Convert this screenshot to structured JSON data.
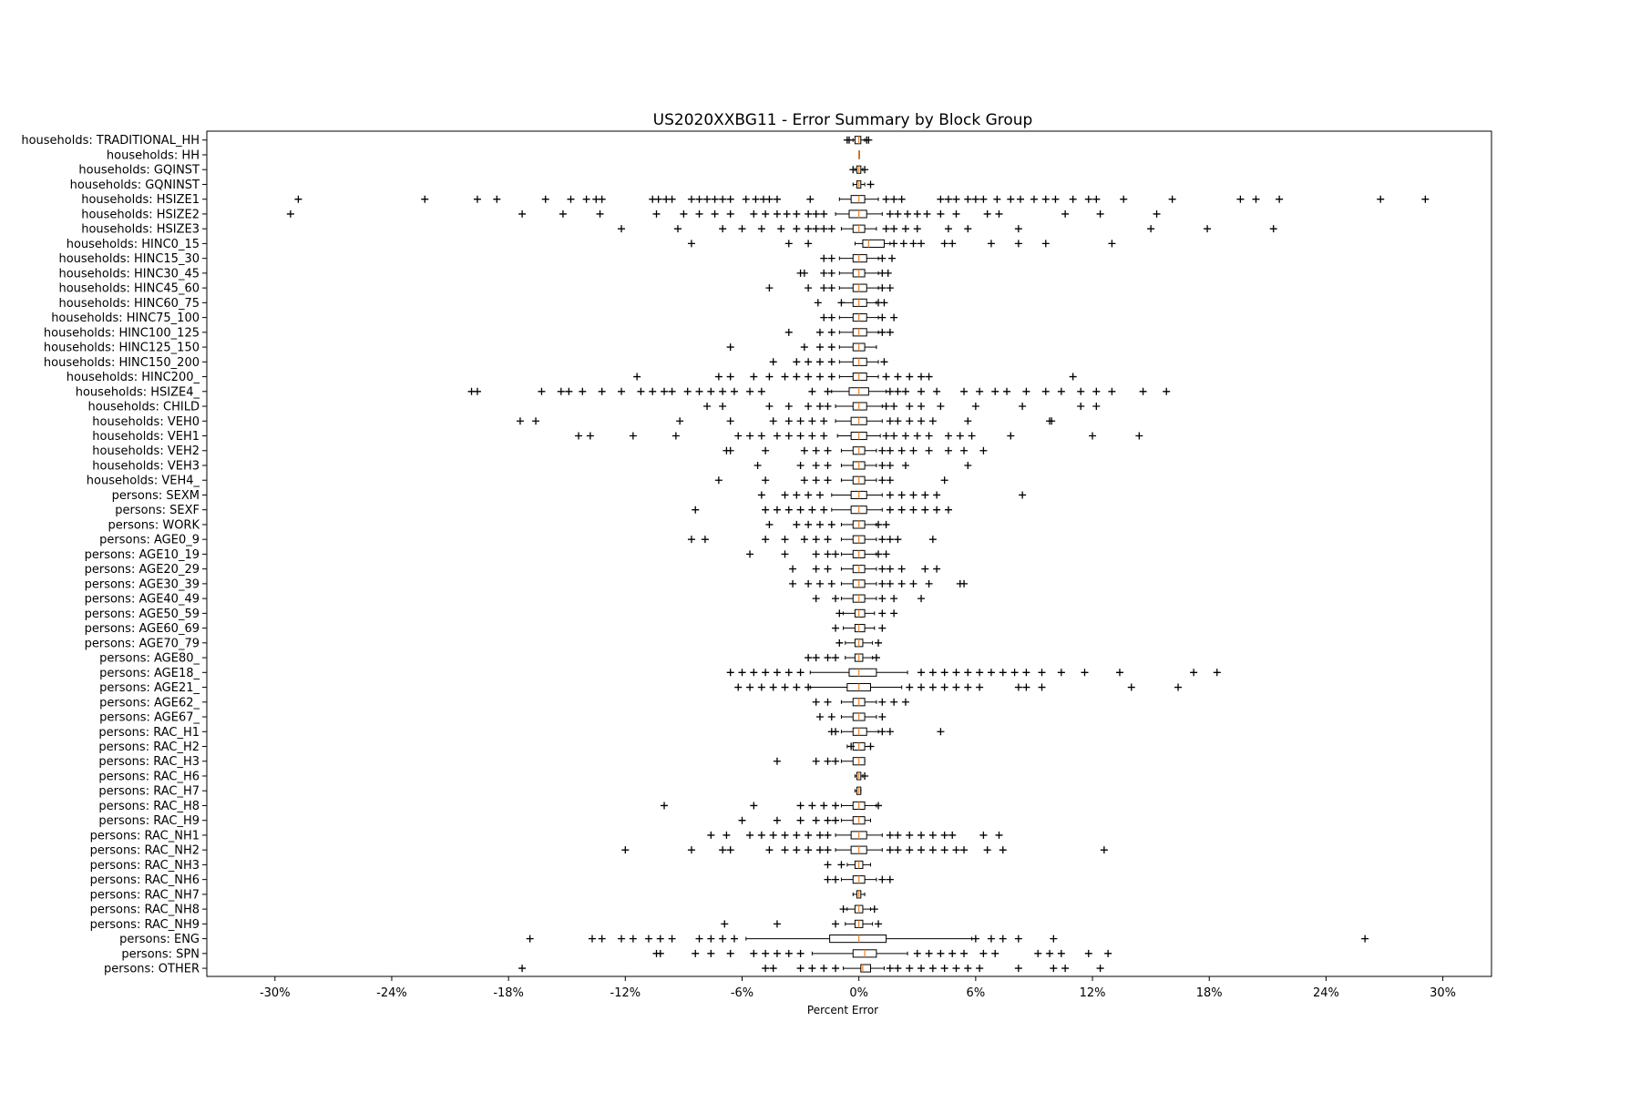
{
  "chart_data": {
    "type": "box",
    "orientation": "horizontal",
    "title": "US2020XXBG11 - Error Summary by Block Group",
    "xlabel": "Percent Error",
    "ylabel": "",
    "xlim": [
      -33.5,
      32.5
    ],
    "xticks": [
      -30,
      -24,
      -18,
      -12,
      -6,
      0,
      6,
      12,
      18,
      24,
      30
    ],
    "xtick_labels": [
      "-30%",
      "-24%",
      "-18%",
      "-12%",
      "-6%",
      "0%",
      "6%",
      "12%",
      "18%",
      "24%",
      "30%"
    ],
    "colors": {
      "median": "#ff7f0e",
      "box": "#000000",
      "frame": "#000000"
    },
    "legend": "none",
    "grid": false,
    "categories": [
      "households: TRADITIONAL_HH",
      "households: HH",
      "households: GQINST",
      "households: GQNINST",
      "households: HSIZE1",
      "households: HSIZE2",
      "households: HSIZE3",
      "households: HINC0_15",
      "households: HINC15_30",
      "households: HINC30_45",
      "households: HINC45_60",
      "households: HINC60_75",
      "households: HINC75_100",
      "households: HINC100_125",
      "households: HINC125_150",
      "households: HINC150_200",
      "households: HINC200_",
      "households: HSIZE4_",
      "households: CHILD",
      "households: VEH0",
      "households: VEH1",
      "households: VEH2",
      "households: VEH3",
      "households: VEH4_",
      "persons: SEXM",
      "persons: SEXF",
      "persons: WORK",
      "persons: AGE0_9",
      "persons: AGE10_19",
      "persons: AGE20_29",
      "persons: AGE30_39",
      "persons: AGE40_49",
      "persons: AGE50_59",
      "persons: AGE60_69",
      "persons: AGE70_79",
      "persons: AGE80_",
      "persons: AGE18_",
      "persons: AGE21_",
      "persons: AGE62_",
      "persons: AGE67_",
      "persons: RAC_H1",
      "persons: RAC_H2",
      "persons: RAC_H3",
      "persons: RAC_H6",
      "persons: RAC_H7",
      "persons: RAC_H8",
      "persons: RAC_H9",
      "persons: RAC_NH1",
      "persons: RAC_NH2",
      "persons: RAC_NH3",
      "persons: RAC_NH6",
      "persons: RAC_NH7",
      "persons: RAC_NH8",
      "persons: RAC_NH9",
      "persons: ENG",
      "persons: SPN",
      "persons: OTHER"
    ],
    "series": [
      {
        "q1": -0.2,
        "median": 0,
        "q3": 0.1,
        "lo": -0.3,
        "hi": 0.3,
        "outliers": [
          -0.6,
          -0.5,
          0.4,
          0.5
        ]
      },
      {
        "q1": 0,
        "median": 0,
        "q3": 0,
        "lo": 0,
        "hi": 0,
        "outliers": []
      },
      {
        "q1": -0.1,
        "median": 0,
        "q3": 0.1,
        "lo": -0.2,
        "hi": 0.2,
        "outliers": [
          -0.3,
          0.3
        ]
      },
      {
        "q1": -0.1,
        "median": 0,
        "q3": 0.1,
        "lo": -0.3,
        "hi": 0.3,
        "outliers": [
          0.6
        ]
      },
      {
        "q1": -0.4,
        "median": 0,
        "q3": 0.3,
        "lo": -1.0,
        "hi": 1.0,
        "outliers": [
          -28.8,
          -22.3,
          -19.6,
          -18.6,
          -16.1,
          -14.8,
          -14.0,
          -13.5,
          -13.2,
          -10.6,
          -10.3,
          -9.9,
          -9.6,
          -8.6,
          -8.2,
          -7.8,
          -7.4,
          -7.0,
          -6.6,
          -5.8,
          -5.3,
          -4.9,
          -4.6,
          -4.2,
          -2.5,
          1.4,
          1.8,
          2.2,
          4.2,
          4.6,
          5.0,
          5.6,
          6.0,
          6.4,
          7.1,
          7.8,
          8.3,
          9.0,
          9.6,
          10.1,
          11.0,
          11.8,
          12.2,
          13.6,
          16.1,
          19.6,
          20.4,
          21.6,
          26.8,
          29.1
        ]
      },
      {
        "q1": -0.5,
        "median": 0,
        "q3": 0.4,
        "lo": -1.2,
        "hi": 1.2,
        "outliers": [
          -29.2,
          -17.3,
          -15.2,
          -13.3,
          -10.4,
          -9.0,
          -8.2,
          -7.4,
          -6.6,
          -5.4,
          -4.8,
          -4.2,
          -3.7,
          -3.2,
          -2.6,
          -2.2,
          -1.8,
          1.6,
          2.0,
          2.5,
          3.0,
          3.5,
          4.2,
          5.0,
          6.6,
          7.2,
          10.6,
          12.4,
          15.3
        ]
      },
      {
        "q1": -0.3,
        "median": 0,
        "q3": 0.3,
        "lo": -0.9,
        "hi": 0.9,
        "outliers": [
          -12.2,
          -9.3,
          -7.0,
          -6.0,
          -5.0,
          -4.0,
          -3.2,
          -2.6,
          -2.2,
          -1.8,
          -1.4,
          1.4,
          1.8,
          2.4,
          3.0,
          4.6,
          5.6,
          8.2,
          15.0,
          17.9,
          21.3
        ]
      },
      {
        "q1": 0.2,
        "median": 0.5,
        "q3": 1.3,
        "lo": -0.2,
        "hi": 1.6,
        "outliers": [
          -8.6,
          -3.6,
          -2.6,
          1.8,
          2.3,
          2.8,
          3.2,
          4.4,
          4.8,
          6.8,
          8.2,
          9.6,
          13.0
        ]
      },
      {
        "q1": -0.3,
        "median": 0,
        "q3": 0.4,
        "lo": -1.0,
        "hi": 1.0,
        "outliers": [
          -1.8,
          -1.4,
          1.2,
          1.7
        ]
      },
      {
        "q1": -0.3,
        "median": 0,
        "q3": 0.3,
        "lo": -1.0,
        "hi": 1.0,
        "outliers": [
          -3.0,
          -2.8,
          -1.8,
          -1.4,
          1.2,
          1.5
        ]
      },
      {
        "q1": -0.3,
        "median": 0,
        "q3": 0.4,
        "lo": -1.0,
        "hi": 1.0,
        "outliers": [
          -4.6,
          -2.6,
          -1.8,
          -1.4,
          1.2,
          1.6
        ]
      },
      {
        "q1": -0.3,
        "median": 0,
        "q3": 0.4,
        "lo": -0.9,
        "hi": 0.9,
        "outliers": [
          -2.1,
          -0.9,
          1.0,
          1.3
        ]
      },
      {
        "q1": -0.3,
        "median": 0,
        "q3": 0.4,
        "lo": -1.0,
        "hi": 1.0,
        "outliers": [
          -1.8,
          -1.4,
          1.2,
          1.8
        ]
      },
      {
        "q1": -0.3,
        "median": 0,
        "q3": 0.4,
        "lo": -1.0,
        "hi": 1.0,
        "outliers": [
          -3.6,
          -2.0,
          -1.4,
          1.2,
          1.6
        ]
      },
      {
        "q1": -0.3,
        "median": 0,
        "q3": 0.3,
        "lo": -1.0,
        "hi": 0.9,
        "outliers": [
          -6.6,
          -2.8,
          -2.0,
          -1.4
        ]
      },
      {
        "q1": -0.3,
        "median": 0,
        "q3": 0.4,
        "lo": -1.0,
        "hi": 1.0,
        "outliers": [
          -4.4,
          -3.2,
          -2.6,
          -2.0,
          -1.4,
          1.3
        ]
      },
      {
        "q1": -0.3,
        "median": 0,
        "q3": 0.4,
        "lo": -1.0,
        "hi": 1.0,
        "outliers": [
          -11.4,
          -7.2,
          -6.6,
          -5.4,
          -4.6,
          -3.8,
          -3.2,
          -2.6,
          -2.0,
          -1.4,
          1.4,
          2.0,
          2.6,
          3.2,
          3.6,
          11.0
        ]
      },
      {
        "q1": -0.5,
        "median": 0,
        "q3": 0.5,
        "lo": -1.4,
        "hi": 1.4,
        "outliers": [
          -19.9,
          -19.6,
          -16.3,
          -15.3,
          -14.9,
          -14.2,
          -13.2,
          -12.2,
          -11.2,
          -10.6,
          -10.0,
          -9.6,
          -8.8,
          -8.2,
          -7.6,
          -7.0,
          -6.4,
          -5.6,
          -5.0,
          -2.4,
          -1.6,
          1.6,
          2.0,
          2.4,
          3.2,
          4.0,
          5.4,
          6.2,
          7.0,
          7.6,
          8.6,
          9.6,
          10.4,
          11.4,
          12.2,
          13.0,
          14.6,
          15.8
        ]
      },
      {
        "q1": -0.3,
        "median": 0,
        "q3": 0.4,
        "lo": -1.2,
        "hi": 1.2,
        "outliers": [
          -7.8,
          -7.0,
          -4.6,
          -3.6,
          -2.6,
          -2.0,
          -1.6,
          1.4,
          1.8,
          2.6,
          3.2,
          4.2,
          6.0,
          8.4,
          11.4,
          12.2
        ]
      },
      {
        "q1": -0.4,
        "median": 0,
        "q3": 0.4,
        "lo": -1.2,
        "hi": 1.2,
        "outliers": [
          -17.4,
          -16.6,
          -9.2,
          -6.6,
          -4.4,
          -3.6,
          -3.0,
          -2.4,
          -1.8,
          1.6,
          2.0,
          2.6,
          3.2,
          3.8,
          5.6,
          9.8,
          9.9
        ]
      },
      {
        "q1": -0.4,
        "median": 0,
        "q3": 0.4,
        "lo": -1.1,
        "hi": 1.1,
        "outliers": [
          -14.4,
          -13.8,
          -11.6,
          -9.4,
          -6.2,
          -5.6,
          -5.0,
          -4.2,
          -3.6,
          -3.0,
          -2.4,
          -1.8,
          1.4,
          1.8,
          2.4,
          3.0,
          3.6,
          4.6,
          5.2,
          5.8,
          7.8,
          12.0,
          14.4
        ]
      },
      {
        "q1": -0.3,
        "median": 0,
        "q3": 0.3,
        "lo": -0.9,
        "hi": 0.9,
        "outliers": [
          -6.8,
          -6.6,
          -4.8,
          -2.8,
          -2.2,
          -1.6,
          1.2,
          1.6,
          2.2,
          2.8,
          3.6,
          4.6,
          5.4,
          6.4
        ]
      },
      {
        "q1": -0.3,
        "median": 0,
        "q3": 0.3,
        "lo": -0.9,
        "hi": 0.9,
        "outliers": [
          -5.2,
          -3.0,
          -2.2,
          -1.6,
          1.2,
          1.6,
          2.4,
          5.6
        ]
      },
      {
        "q1": -0.3,
        "median": 0,
        "q3": 0.3,
        "lo": -0.9,
        "hi": 0.9,
        "outliers": [
          -7.2,
          -4.8,
          -2.8,
          -2.2,
          -1.6,
          1.2,
          1.6,
          4.4
        ]
      },
      {
        "q1": -0.4,
        "median": 0,
        "q3": 0.4,
        "lo": -1.4,
        "hi": 1.2,
        "outliers": [
          -5.0,
          -3.8,
          -3.2,
          -2.6,
          -2.0,
          1.6,
          2.2,
          2.8,
          3.4,
          4.0,
          8.4
        ]
      },
      {
        "q1": -0.4,
        "median": 0,
        "q3": 0.4,
        "lo": -1.4,
        "hi": 1.2,
        "outliers": [
          -8.4,
          -4.8,
          -4.2,
          -3.6,
          -3.0,
          -2.4,
          -1.8,
          1.6,
          2.2,
          2.8,
          3.4,
          4.0,
          4.6
        ]
      },
      {
        "q1": -0.3,
        "median": 0,
        "q3": 0.3,
        "lo": -0.9,
        "hi": 0.9,
        "outliers": [
          -4.6,
          -3.2,
          -2.6,
          -2.0,
          -1.4,
          1.0,
          1.4
        ]
      },
      {
        "q1": -0.3,
        "median": 0,
        "q3": 0.3,
        "lo": -0.9,
        "hi": 0.9,
        "outliers": [
          -8.6,
          -7.9,
          -4.8,
          -3.8,
          -2.8,
          -2.2,
          -1.6,
          1.2,
          1.6,
          2.0,
          3.8
        ]
      },
      {
        "q1": -0.3,
        "median": 0,
        "q3": 0.3,
        "lo": -0.9,
        "hi": 0.9,
        "outliers": [
          -5.6,
          -3.8,
          -2.2,
          -1.6,
          -1.2,
          1.0,
          1.4
        ]
      },
      {
        "q1": -0.3,
        "median": 0,
        "q3": 0.3,
        "lo": -0.9,
        "hi": 0.9,
        "outliers": [
          -3.4,
          -2.2,
          -1.6,
          1.2,
          1.6,
          2.2,
          3.4,
          4.0
        ]
      },
      {
        "q1": -0.3,
        "median": 0,
        "q3": 0.3,
        "lo": -0.9,
        "hi": 0.9,
        "outliers": [
          -3.4,
          -2.6,
          -2.0,
          -1.4,
          1.2,
          1.6,
          2.2,
          2.8,
          3.6,
          5.2,
          5.4
        ]
      },
      {
        "q1": -0.3,
        "median": 0,
        "q3": 0.3,
        "lo": -0.9,
        "hi": 0.9,
        "outliers": [
          -2.2,
          -1.2,
          1.2,
          1.8,
          3.2
        ]
      },
      {
        "q1": -0.2,
        "median": 0,
        "q3": 0.3,
        "lo": -0.8,
        "hi": 0.8,
        "outliers": [
          -1.0,
          1.2,
          1.8
        ]
      },
      {
        "q1": -0.2,
        "median": 0,
        "q3": 0.3,
        "lo": -0.8,
        "hi": 0.8,
        "outliers": [
          -1.2,
          1.2
        ]
      },
      {
        "q1": -0.2,
        "median": 0,
        "q3": 0.2,
        "lo": -0.7,
        "hi": 0.7,
        "outliers": [
          -1.0,
          1.0
        ]
      },
      {
        "q1": -0.2,
        "median": 0,
        "q3": 0.2,
        "lo": -0.7,
        "hi": 0.7,
        "outliers": [
          -2.6,
          -2.2,
          -1.6,
          -1.2,
          0.9
        ]
      },
      {
        "q1": -0.5,
        "median": 0,
        "q3": 0.9,
        "lo": -2.5,
        "hi": 2.5,
        "outliers": [
          -6.6,
          -6.0,
          -5.4,
          -4.8,
          -4.2,
          -3.6,
          -3.0,
          3.2,
          3.8,
          4.4,
          5.0,
          5.6,
          6.2,
          6.8,
          7.4,
          8.0,
          8.6,
          9.4,
          10.4,
          11.6,
          13.4,
          17.2,
          18.4
        ]
      },
      {
        "q1": -0.6,
        "median": 0,
        "q3": 0.6,
        "lo": -2.5,
        "hi": 2.2,
        "outliers": [
          -6.2,
          -5.6,
          -5.0,
          -4.4,
          -3.8,
          -3.2,
          -2.6,
          2.6,
          3.2,
          3.8,
          4.4,
          5.0,
          5.6,
          6.2,
          8.2,
          8.6,
          9.4,
          14.0,
          16.4
        ]
      },
      {
        "q1": -0.3,
        "median": 0,
        "q3": 0.3,
        "lo": -0.9,
        "hi": 0.9,
        "outliers": [
          -2.2,
          -1.6,
          1.2,
          1.8,
          2.4
        ]
      },
      {
        "q1": -0.3,
        "median": 0,
        "q3": 0.3,
        "lo": -0.9,
        "hi": 0.9,
        "outliers": [
          -2.0,
          -1.4,
          1.2
        ]
      },
      {
        "q1": -0.3,
        "median": 0,
        "q3": 0.4,
        "lo": -0.9,
        "hi": 1.0,
        "outliers": [
          -1.4,
          -1.2,
          1.2,
          1.6,
          4.2
        ]
      },
      {
        "q1": -0.3,
        "median": 0,
        "q3": 0.3,
        "lo": -0.6,
        "hi": 0.6,
        "outliers": [
          -0.4,
          0.6
        ]
      },
      {
        "q1": -0.3,
        "median": 0,
        "q3": 0.3,
        "lo": -0.9,
        "hi": 0.3,
        "outliers": [
          -4.2,
          -2.2,
          -1.6,
          -1.2
        ]
      },
      {
        "q1": -0.1,
        "median": 0,
        "q3": 0.1,
        "lo": -0.2,
        "hi": 0.2,
        "outliers": [
          0.3
        ]
      },
      {
        "q1": -0.1,
        "median": 0,
        "q3": 0.1,
        "lo": -0.2,
        "hi": 0.1,
        "outliers": []
      },
      {
        "q1": -0.3,
        "median": 0,
        "q3": 0.3,
        "lo": -0.9,
        "hi": 0.9,
        "outliers": [
          -10.0,
          -5.4,
          -3.0,
          -2.4,
          -1.8,
          -1.2,
          1.0
        ]
      },
      {
        "q1": -0.3,
        "median": 0,
        "q3": 0.3,
        "lo": -0.9,
        "hi": 0.6,
        "outliers": [
          -6.0,
          -4.2,
          -3.0,
          -2.2,
          -1.6,
          -1.2
        ]
      },
      {
        "q1": -0.4,
        "median": 0,
        "q3": 0.4,
        "lo": -1.2,
        "hi": 1.2,
        "outliers": [
          -7.6,
          -6.8,
          -5.6,
          -5.0,
          -4.4,
          -3.8,
          -3.2,
          -2.6,
          -2.0,
          -1.6,
          1.6,
          2.0,
          2.6,
          3.2,
          3.8,
          4.4,
          4.8,
          6.4,
          7.2
        ]
      },
      {
        "q1": -0.4,
        "median": 0,
        "q3": 0.4,
        "lo": -1.2,
        "hi": 1.2,
        "outliers": [
          -12.0,
          -8.6,
          -7.0,
          -6.6,
          -4.6,
          -3.8,
          -3.2,
          -2.6,
          -2.0,
          -1.6,
          1.6,
          2.0,
          2.6,
          3.2,
          3.8,
          4.4,
          5.0,
          5.4,
          6.6,
          7.4,
          12.6
        ]
      },
      {
        "q1": -0.2,
        "median": 0,
        "q3": 0.2,
        "lo": -0.6,
        "hi": 0.6,
        "outliers": [
          -1.6,
          -0.9
        ]
      },
      {
        "q1": -0.3,
        "median": 0,
        "q3": 0.3,
        "lo": -0.9,
        "hi": 0.9,
        "outliers": [
          -1.6,
          -1.2,
          1.2,
          1.6
        ]
      },
      {
        "q1": -0.1,
        "median": 0,
        "q3": 0.1,
        "lo": -0.3,
        "hi": 0.3,
        "outliers": []
      },
      {
        "q1": -0.2,
        "median": 0,
        "q3": 0.2,
        "lo": -0.6,
        "hi": 0.6,
        "outliers": [
          -0.8,
          0.8
        ]
      },
      {
        "q1": -0.2,
        "median": 0,
        "q3": 0.2,
        "lo": -0.7,
        "hi": 0.7,
        "outliers": [
          -6.9,
          -4.2,
          -1.2,
          1.0
        ]
      },
      {
        "q1": -1.5,
        "median": 0,
        "q3": 1.4,
        "lo": -5.8,
        "hi": 5.8,
        "outliers": [
          -16.9,
          -13.7,
          -13.2,
          -12.2,
          -11.6,
          -10.8,
          -10.2,
          -9.6,
          -8.2,
          -7.6,
          -7.0,
          -6.4,
          6.0,
          6.8,
          7.4,
          8.2,
          10.0,
          26.0
        ]
      },
      {
        "q1": -0.3,
        "median": 0.3,
        "q3": 0.9,
        "lo": -2.4,
        "hi": 2.5,
        "outliers": [
          -10.4,
          -10.2,
          -8.4,
          -7.6,
          -6.6,
          -5.4,
          -4.8,
          -4.2,
          -3.6,
          -3.0,
          3.0,
          3.6,
          4.2,
          4.8,
          5.4,
          6.4,
          7.0,
          9.2,
          9.8,
          10.4,
          11.8,
          12.8
        ]
      },
      {
        "q1": 0.1,
        "median": 0.2,
        "q3": 0.6,
        "lo": -0.8,
        "hi": 1.3,
        "outliers": [
          -17.3,
          -4.8,
          -4.4,
          -3.0,
          -2.4,
          -1.8,
          -1.2,
          1.6,
          2.0,
          2.6,
          3.2,
          3.8,
          4.4,
          5.0,
          5.6,
          6.2,
          8.2,
          10.0,
          10.6,
          12.4
        ]
      }
    ]
  }
}
